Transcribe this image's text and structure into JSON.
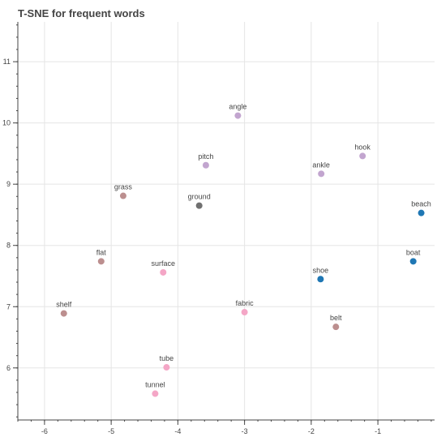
{
  "chart_data": {
    "type": "scatter",
    "title": "T-SNE for frequent words",
    "xlabel": "",
    "ylabel": "",
    "xlim": [
      -6.4,
      -0.15
    ],
    "ylim": [
      5.15,
      11.65
    ],
    "xticks": [
      -6,
      -5,
      -4,
      -3,
      -2,
      -1
    ],
    "yticks": [
      6,
      7,
      8,
      9,
      10,
      11
    ],
    "grid": true,
    "points": [
      {
        "label": "angle",
        "x": -3.1,
        "y": 10.12,
        "color": "#c2a5cf"
      },
      {
        "label": "pitch",
        "x": -3.58,
        "y": 9.31,
        "color": "#c2a5cf"
      },
      {
        "label": "hook",
        "x": -1.23,
        "y": 9.46,
        "color": "#c2a5cf"
      },
      {
        "label": "ankle",
        "x": -1.85,
        "y": 9.17,
        "color": "#c2a5cf"
      },
      {
        "label": "grass",
        "x": -4.82,
        "y": 8.81,
        "color": "#bc8f8f"
      },
      {
        "label": "ground",
        "x": -3.68,
        "y": 8.65,
        "color": "#707070"
      },
      {
        "label": "beach",
        "x": -0.35,
        "y": 8.53,
        "color": "#1f77b4"
      },
      {
        "label": "flat",
        "x": -5.15,
        "y": 7.74,
        "color": "#bc8f8f"
      },
      {
        "label": "surface",
        "x": -4.22,
        "y": 7.56,
        "color": "#f4a6c6"
      },
      {
        "label": "boat",
        "x": -0.47,
        "y": 7.74,
        "color": "#1f77b4"
      },
      {
        "label": "shoe",
        "x": -1.86,
        "y": 7.45,
        "color": "#1f77b4"
      },
      {
        "label": "shelf",
        "x": -5.71,
        "y": 6.89,
        "color": "#bc8f8f"
      },
      {
        "label": "fabric",
        "x": -3.0,
        "y": 6.91,
        "color": "#f4a6c6"
      },
      {
        "label": "belt",
        "x": -1.63,
        "y": 6.67,
        "color": "#bc8f8f"
      },
      {
        "label": "tube",
        "x": -4.17,
        "y": 6.01,
        "color": "#f4a6c6"
      },
      {
        "label": "tunnel",
        "x": -4.34,
        "y": 5.58,
        "color": "#f4a6c6"
      }
    ]
  }
}
